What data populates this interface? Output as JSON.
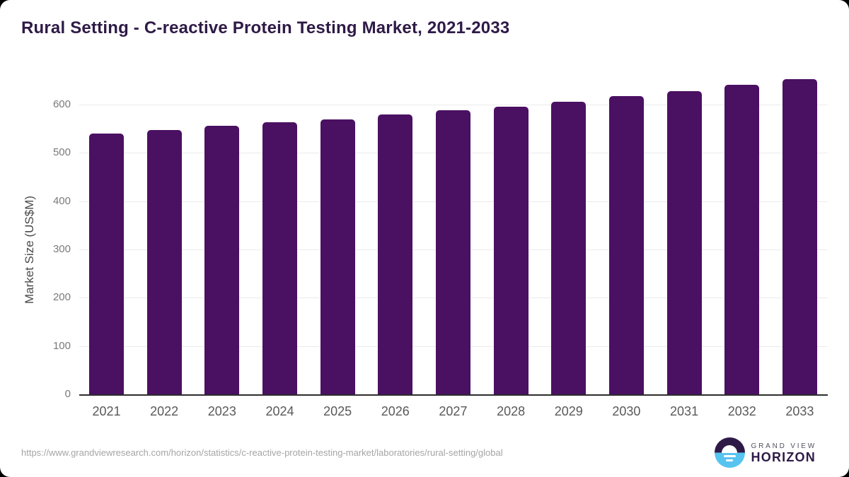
{
  "header": {
    "title": "Rural Setting - C-reactive Protein Testing Market, 2021-2033"
  },
  "chart_data": {
    "type": "bar",
    "title": "Rural Setting - C-reactive Protein Testing Market, 2021-2033",
    "categories": [
      "2021",
      "2022",
      "2023",
      "2024",
      "2025",
      "2026",
      "2027",
      "2028",
      "2029",
      "2030",
      "2031",
      "2032",
      "2033"
    ],
    "values": [
      540,
      548,
      556,
      564,
      569,
      579,
      588,
      595,
      606,
      617,
      628,
      641,
      653
    ],
    "xlabel": "",
    "ylabel": "Market Size (US$M)",
    "ylim": [
      0,
      600
    ],
    "yticks": [
      0,
      100,
      200,
      300,
      400,
      500,
      600
    ],
    "grid": true,
    "legend": "none",
    "bar_color": "#4a1062"
  },
  "colors": {
    "title": "#2e1a47",
    "bar": "#4a1062",
    "gridline": "#ebebeb",
    "axis_line": "#2d2d2d",
    "y_tick_label": "#7a7a7a",
    "x_tick_label": "#595959",
    "axis_title": "#4a4a4a",
    "source_url_text": "#a5a5a5",
    "logo_blue": "#57c4f0",
    "logo_purple": "#2e1a47"
  },
  "footer": {
    "source_url": "https://www.grandviewresearch.com/horizon/statistics/c-reactive-protein-testing-market/laboratories/rural-setting/global",
    "logo": {
      "line1": "GRAND VIEW",
      "line2": "HORIZON"
    }
  }
}
